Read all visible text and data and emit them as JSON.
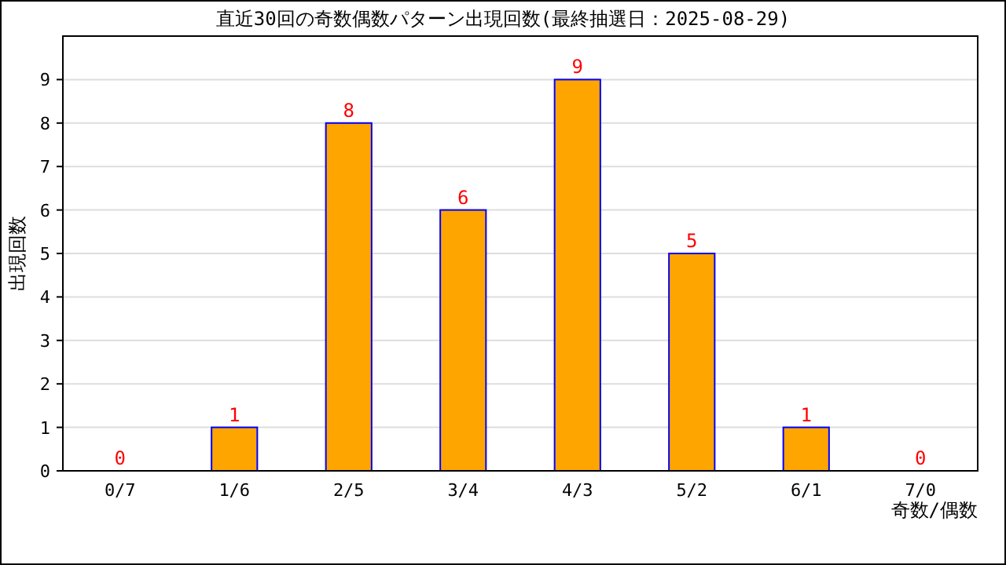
{
  "chart_data": {
    "type": "bar",
    "title": "直近30回の奇数偶数パターン出現回数(最終抽選日：2025-08-29)",
    "xlabel": "奇数/偶数",
    "ylabel": "出現回数",
    "categories": [
      "0/7",
      "1/6",
      "2/5",
      "3/4",
      "4/3",
      "5/2",
      "6/1",
      "7/0"
    ],
    "series": [
      {
        "color": "#ffa500",
        "values": [
          0,
          1,
          8,
          6,
          9,
          5,
          1,
          0
        ]
      }
    ],
    "ylim": [
      0,
      10
    ],
    "yticks": [
      0,
      1,
      2,
      3,
      4,
      5,
      6,
      7,
      8,
      9
    ],
    "grid": "y",
    "data_labels": true
  }
}
